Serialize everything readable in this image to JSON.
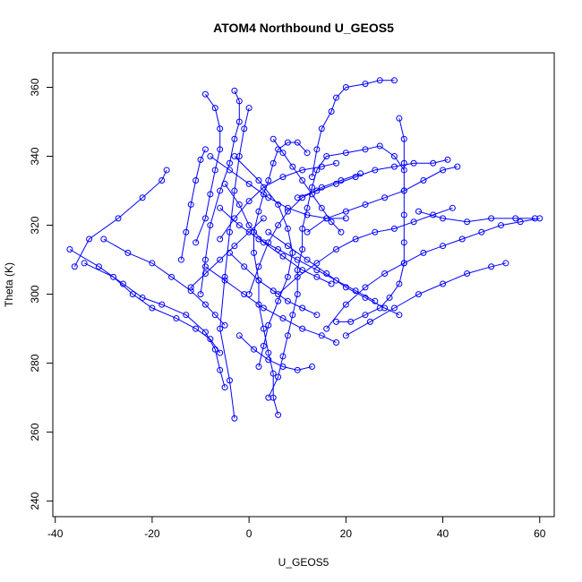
{
  "chart_data": {
    "type": "scatter",
    "title": "ATOM4 Northbound U_GEOS5",
    "xlabel": "U_GEOS5",
    "ylabel": "Theta (K)",
    "xlim": [
      -40.5,
      63
    ],
    "ylim": [
      235.5,
      370
    ],
    "xticks": [
      -40,
      -20,
      0,
      20,
      40,
      60
    ],
    "yticks": [
      240,
      260,
      280,
      300,
      320,
      340,
      360
    ],
    "x_tick_labels": [
      "-40",
      "-20",
      "0",
      "20",
      "40",
      "60"
    ],
    "y_tick_labels": [
      "240",
      "260",
      "280",
      "300",
      "320",
      "340",
      "360"
    ],
    "grid": false,
    "legend": "none",
    "marker": "open-circle",
    "connected": true,
    "color": "#0000ff",
    "series": [
      {
        "points": [
          [
            -3,
            264
          ],
          [
            -4,
            275
          ],
          [
            -6,
            290
          ],
          [
            -5,
            305
          ],
          [
            -4,
            318
          ],
          [
            -3,
            330
          ],
          [
            -2,
            340
          ],
          [
            -1,
            348
          ],
          [
            0,
            354
          ]
        ]
      },
      {
        "points": [
          [
            -36,
            308
          ],
          [
            -33,
            316
          ],
          [
            -27,
            322
          ],
          [
            -22,
            328
          ],
          [
            -18,
            333
          ],
          [
            -17,
            336
          ]
        ]
      },
      {
        "points": [
          [
            -37,
            313
          ],
          [
            -31,
            308
          ],
          [
            -26,
            303
          ],
          [
            -22,
            299
          ],
          [
            -18,
            297
          ],
          [
            -13,
            294
          ],
          [
            -9,
            289
          ],
          [
            -7,
            284
          ],
          [
            -6,
            278
          ],
          [
            -5,
            273
          ]
        ]
      },
      {
        "points": [
          [
            -34,
            309
          ],
          [
            -28,
            305
          ],
          [
            -24,
            300
          ],
          [
            -20,
            296
          ],
          [
            -15,
            293
          ],
          [
            -11,
            290
          ],
          [
            -8,
            287
          ],
          [
            -6,
            283
          ]
        ]
      },
      {
        "points": [
          [
            -30,
            316
          ],
          [
            -25,
            312
          ],
          [
            -20,
            309
          ],
          [
            -16,
            305
          ],
          [
            -12,
            301
          ],
          [
            -9,
            297
          ],
          [
            -7,
            294
          ],
          [
            -5,
            291
          ]
        ]
      },
      {
        "points": [
          [
            -11,
            315
          ],
          [
            -9,
            322
          ],
          [
            -8,
            329
          ],
          [
            -7,
            336
          ],
          [
            -6,
            342
          ],
          [
            -6,
            348
          ],
          [
            -7,
            354
          ],
          [
            -9,
            358
          ]
        ]
      },
      {
        "points": [
          [
            -14,
            310
          ],
          [
            -13,
            318
          ],
          [
            -12,
            326
          ],
          [
            -11,
            333
          ],
          [
            -10,
            339
          ],
          [
            -9,
            342
          ]
        ]
      },
      {
        "points": [
          [
            -10,
            300
          ],
          [
            -9,
            310
          ],
          [
            -8,
            320
          ],
          [
            -6,
            330
          ],
          [
            -4,
            338
          ],
          [
            -3,
            345
          ],
          [
            -2,
            350
          ],
          [
            -2,
            356
          ],
          [
            -3,
            359
          ]
        ]
      },
      {
        "points": [
          [
            6,
            265
          ],
          [
            5,
            270
          ],
          [
            5,
            277
          ],
          [
            4,
            283
          ],
          [
            3,
            290
          ],
          [
            2,
            297
          ],
          [
            2,
            304
          ],
          [
            1,
            312
          ],
          [
            1,
            318
          ],
          [
            2,
            324
          ],
          [
            3,
            329
          ],
          [
            4,
            333
          ],
          [
            5,
            338
          ],
          [
            6,
            342
          ],
          [
            8,
            344
          ],
          [
            10,
            344
          ],
          [
            12,
            341
          ]
        ]
      },
      {
        "points": [
          [
            4,
            270
          ],
          [
            6,
            276
          ],
          [
            7,
            282
          ],
          [
            8,
            288
          ],
          [
            9,
            294
          ],
          [
            10,
            300
          ],
          [
            10,
            307
          ],
          [
            11,
            313
          ],
          [
            11,
            319
          ],
          [
            12,
            325
          ],
          [
            13,
            331
          ],
          [
            14,
            336
          ],
          [
            16,
            340
          ],
          [
            20,
            341
          ],
          [
            24,
            342
          ],
          [
            27,
            343
          ],
          [
            30,
            340
          ],
          [
            32,
            336
          ]
        ]
      },
      {
        "points": [
          [
            13,
            334
          ],
          [
            14,
            342
          ],
          [
            15,
            348
          ],
          [
            17,
            353
          ],
          [
            18,
            357
          ],
          [
            20,
            360
          ],
          [
            24,
            361
          ],
          [
            27,
            362
          ],
          [
            30,
            362
          ]
        ]
      },
      {
        "points": [
          [
            31,
            351
          ],
          [
            32,
            345
          ],
          [
            32,
            338
          ],
          [
            32,
            330
          ],
          [
            32,
            323
          ],
          [
            32,
            315
          ],
          [
            32,
            309
          ],
          [
            31,
            303
          ],
          [
            29,
            299
          ],
          [
            27,
            296
          ],
          [
            24,
            294
          ],
          [
            21,
            292
          ],
          [
            18,
            292
          ]
        ]
      },
      {
        "points": [
          [
            16,
            290
          ],
          [
            20,
            297
          ],
          [
            24,
            302
          ],
          [
            28,
            306
          ],
          [
            32,
            309
          ],
          [
            36,
            312
          ],
          [
            40,
            314
          ],
          [
            44,
            316
          ],
          [
            48,
            318
          ],
          [
            52,
            320
          ],
          [
            56,
            321
          ],
          [
            60,
            322
          ]
        ]
      },
      {
        "points": [
          [
            6,
            300
          ],
          [
            10,
            305
          ],
          [
            14,
            309
          ],
          [
            18,
            313
          ],
          [
            22,
            316
          ],
          [
            26,
            318
          ],
          [
            30,
            319
          ],
          [
            34,
            321
          ],
          [
            38,
            323
          ],
          [
            42,
            325
          ]
        ]
      },
      {
        "points": [
          [
            12,
            318
          ],
          [
            16,
            322
          ],
          [
            20,
            324
          ],
          [
            24,
            326
          ],
          [
            28,
            328
          ],
          [
            32,
            330
          ],
          [
            36,
            333
          ],
          [
            40,
            336
          ],
          [
            43,
            337
          ]
        ]
      },
      {
        "points": [
          [
            20,
            288
          ],
          [
            25,
            292
          ],
          [
            30,
            296
          ],
          [
            35,
            300
          ],
          [
            40,
            303
          ],
          [
            45,
            306
          ],
          [
            50,
            308
          ],
          [
            53,
            309
          ]
        ]
      },
      {
        "points": [
          [
            -6,
            325
          ],
          [
            -2,
            320
          ],
          [
            2,
            316
          ],
          [
            6,
            313
          ],
          [
            10,
            310
          ],
          [
            14,
            307
          ],
          [
            18,
            304
          ],
          [
            22,
            301
          ],
          [
            26,
            298
          ]
        ]
      },
      {
        "points": [
          [
            -8,
            340
          ],
          [
            -4,
            336
          ],
          [
            0,
            332
          ],
          [
            4,
            328
          ],
          [
            8,
            325
          ],
          [
            12,
            323
          ],
          [
            16,
            322
          ],
          [
            20,
            322
          ]
        ]
      },
      {
        "points": [
          [
            -3,
            340
          ],
          [
            2,
            333
          ],
          [
            6,
            326
          ],
          [
            8,
            319
          ],
          [
            9,
            312
          ],
          [
            8,
            305
          ],
          [
            6,
            298
          ],
          [
            4,
            291
          ],
          [
            3,
            285
          ],
          [
            2,
            279
          ]
        ]
      },
      {
        "points": [
          [
            4,
            318
          ],
          [
            8,
            314
          ],
          [
            12,
            310
          ],
          [
            16,
            306
          ],
          [
            20,
            302
          ],
          [
            24,
            299
          ],
          [
            28,
            296
          ],
          [
            31,
            294
          ]
        ]
      },
      {
        "points": [
          [
            -5,
            332
          ],
          [
            -2,
            326
          ],
          [
            0,
            320
          ],
          [
            3,
            315
          ],
          [
            7,
            311
          ],
          [
            11,
            307
          ],
          [
            14,
            305
          ],
          [
            17,
            303
          ]
        ]
      },
      {
        "points": [
          [
            -9,
            308
          ],
          [
            -5,
            304
          ],
          [
            -1,
            300
          ],
          [
            3,
            296
          ],
          [
            7,
            293
          ],
          [
            11,
            290
          ],
          [
            15,
            288
          ],
          [
            18,
            286
          ]
        ]
      },
      {
        "points": [
          [
            0,
            300
          ],
          [
            2,
            308
          ],
          [
            4,
            315
          ],
          [
            6,
            320
          ],
          [
            8,
            324
          ],
          [
            11,
            328
          ],
          [
            15,
            331
          ],
          [
            19,
            333
          ],
          [
            23,
            335
          ]
        ]
      },
      {
        "points": [
          [
            -4,
            312
          ],
          [
            -1,
            308
          ],
          [
            2,
            304
          ],
          [
            5,
            301
          ],
          [
            8,
            298
          ],
          [
            11,
            296
          ],
          [
            14,
            294
          ]
        ]
      },
      {
        "points": [
          [
            10,
            328
          ],
          [
            14,
            330
          ],
          [
            18,
            332
          ],
          [
            22,
            334
          ],
          [
            26,
            336
          ],
          [
            30,
            337
          ],
          [
            34,
            338
          ],
          [
            38,
            338
          ],
          [
            41,
            339
          ]
        ]
      },
      {
        "points": [
          [
            5,
            345
          ],
          [
            7,
            341
          ],
          [
            9,
            337
          ],
          [
            11,
            333
          ],
          [
            13,
            329
          ],
          [
            15,
            325
          ],
          [
            17,
            321
          ],
          [
            19,
            318
          ]
        ]
      },
      {
        "points": [
          [
            -2,
            288
          ],
          [
            1,
            284
          ],
          [
            4,
            281
          ],
          [
            7,
            279
          ],
          [
            10,
            278
          ],
          [
            13,
            279
          ]
        ]
      },
      {
        "points": [
          [
            -6,
            316
          ],
          [
            -3,
            322
          ],
          [
            0,
            327
          ],
          [
            3,
            331
          ],
          [
            7,
            334
          ],
          [
            11,
            336
          ],
          [
            15,
            337
          ],
          [
            18,
            338
          ]
        ]
      },
      {
        "points": [
          [
            35,
            324
          ],
          [
            40,
            322
          ],
          [
            45,
            321
          ],
          [
            50,
            322
          ],
          [
            55,
            322
          ],
          [
            59,
            322
          ]
        ]
      },
      {
        "points": [
          [
            -12,
            302
          ],
          [
            -9,
            306
          ],
          [
            -6,
            310
          ],
          [
            -3,
            314
          ],
          [
            0,
            318
          ],
          [
            3,
            322
          ]
        ]
      }
    ]
  }
}
